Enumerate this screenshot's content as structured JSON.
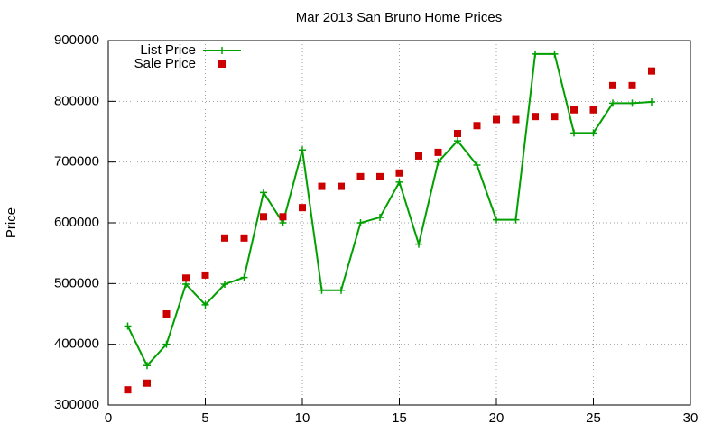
{
  "chart_data": {
    "type": "line",
    "title": "Mar 2013 San Bruno Home Prices",
    "y_label": "Price",
    "x": [
      1,
      2,
      3,
      4,
      5,
      6,
      7,
      8,
      9,
      10,
      11,
      12,
      13,
      14,
      15,
      16,
      17,
      18,
      19,
      20,
      21,
      22,
      23,
      24,
      25,
      26,
      27,
      28
    ],
    "series": [
      {
        "name": "List Price",
        "color": "#00a000",
        "mode": "lines+markers",
        "values": [
          430000,
          365000,
          400000,
          499000,
          465000,
          499000,
          510000,
          650000,
          600000,
          720000,
          489000,
          489000,
          600000,
          609000,
          667000,
          565000,
          700000,
          735000,
          695000,
          605000,
          605000,
          878000,
          878000,
          748000,
          748000,
          797000,
          797000,
          799000
        ]
      },
      {
        "name": "Sale Price",
        "color": "#cc0000",
        "mode": "markers",
        "values": [
          325000,
          336000,
          450000,
          509000,
          514000,
          575000,
          575000,
          610000,
          610000,
          625000,
          660000,
          660000,
          676000,
          676000,
          682000,
          710000,
          716000,
          747000,
          760000,
          770000,
          770000,
          775000,
          775000,
          786000,
          786000,
          826000,
          826000,
          850000
        ]
      }
    ],
    "xlim": [
      0,
      30
    ],
    "xticks": [
      0,
      5,
      10,
      15,
      20,
      25,
      30
    ],
    "ylim": [
      300000,
      900000
    ],
    "yticks": [
      300000,
      400000,
      500000,
      600000,
      700000,
      800000,
      900000
    ],
    "grid": true,
    "legend": "top-left"
  }
}
